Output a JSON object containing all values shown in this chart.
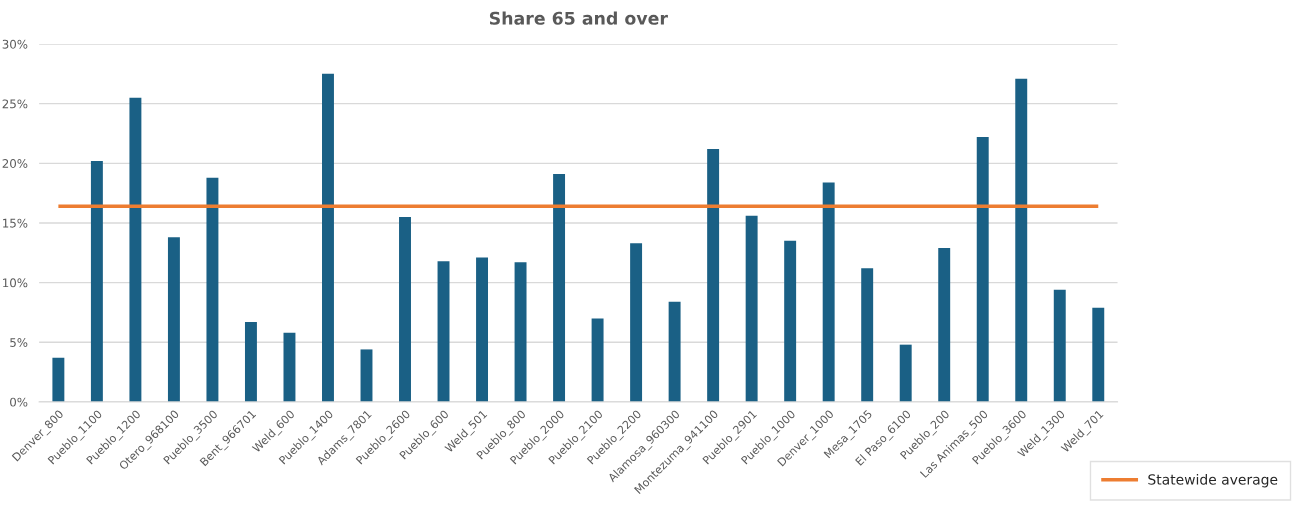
{
  "chart_data": {
    "type": "bar",
    "title": "Share 65 and over",
    "categories": [
      "Denver_800",
      "Pueblo_1100",
      "Pueblo_1200",
      "Otero_968100",
      "Pueblo_3500",
      "Bent_966701",
      "Weld_600",
      "Pueblo_1400",
      "Adams_7801",
      "Pueblo_2600",
      "Pueblo_600",
      "Weld_501",
      "Pueblo_800",
      "Pueblo_2000",
      "Pueblo_2100",
      "Pueblo_2200",
      "Alamosa_960300",
      "Montezuma_941100",
      "Pueblo_2901",
      "Pueblo_1000",
      "Denver_1000",
      "Mesa_1705",
      "El Paso_6100",
      "Pueblo_200",
      "Las Animas_500",
      "Pueblo_3600",
      "Weld_1300",
      "Weld_701"
    ],
    "values": [
      3.7,
      20.2,
      25.5,
      13.8,
      18.8,
      6.7,
      5.8,
      27.5,
      4.4,
      15.5,
      11.8,
      12.1,
      11.7,
      19.1,
      7.0,
      13.3,
      8.4,
      21.2,
      15.6,
      13.5,
      18.4,
      11.2,
      4.8,
      12.9,
      22.2,
      27.1,
      9.4,
      7.9
    ],
    "color": "#1a6085",
    "ylim": [
      0,
      30
    ],
    "yticks": [
      {
        "value": 0,
        "label": "0%"
      },
      {
        "value": 5,
        "label": "5%"
      },
      {
        "value": 10,
        "label": "10%"
      },
      {
        "value": 15,
        "label": "15%"
      },
      {
        "value": 20,
        "label": "20%"
      },
      {
        "value": 25,
        "label": "25%"
      },
      {
        "value": 30,
        "label": "30%"
      }
    ],
    "ref_lines": [
      {
        "axis": "y",
        "value": 16.4,
        "label": "Statewide average",
        "color": "#ed7d31",
        "line_style": "solid"
      }
    ],
    "grid": "y",
    "legend": "bottom right"
  }
}
